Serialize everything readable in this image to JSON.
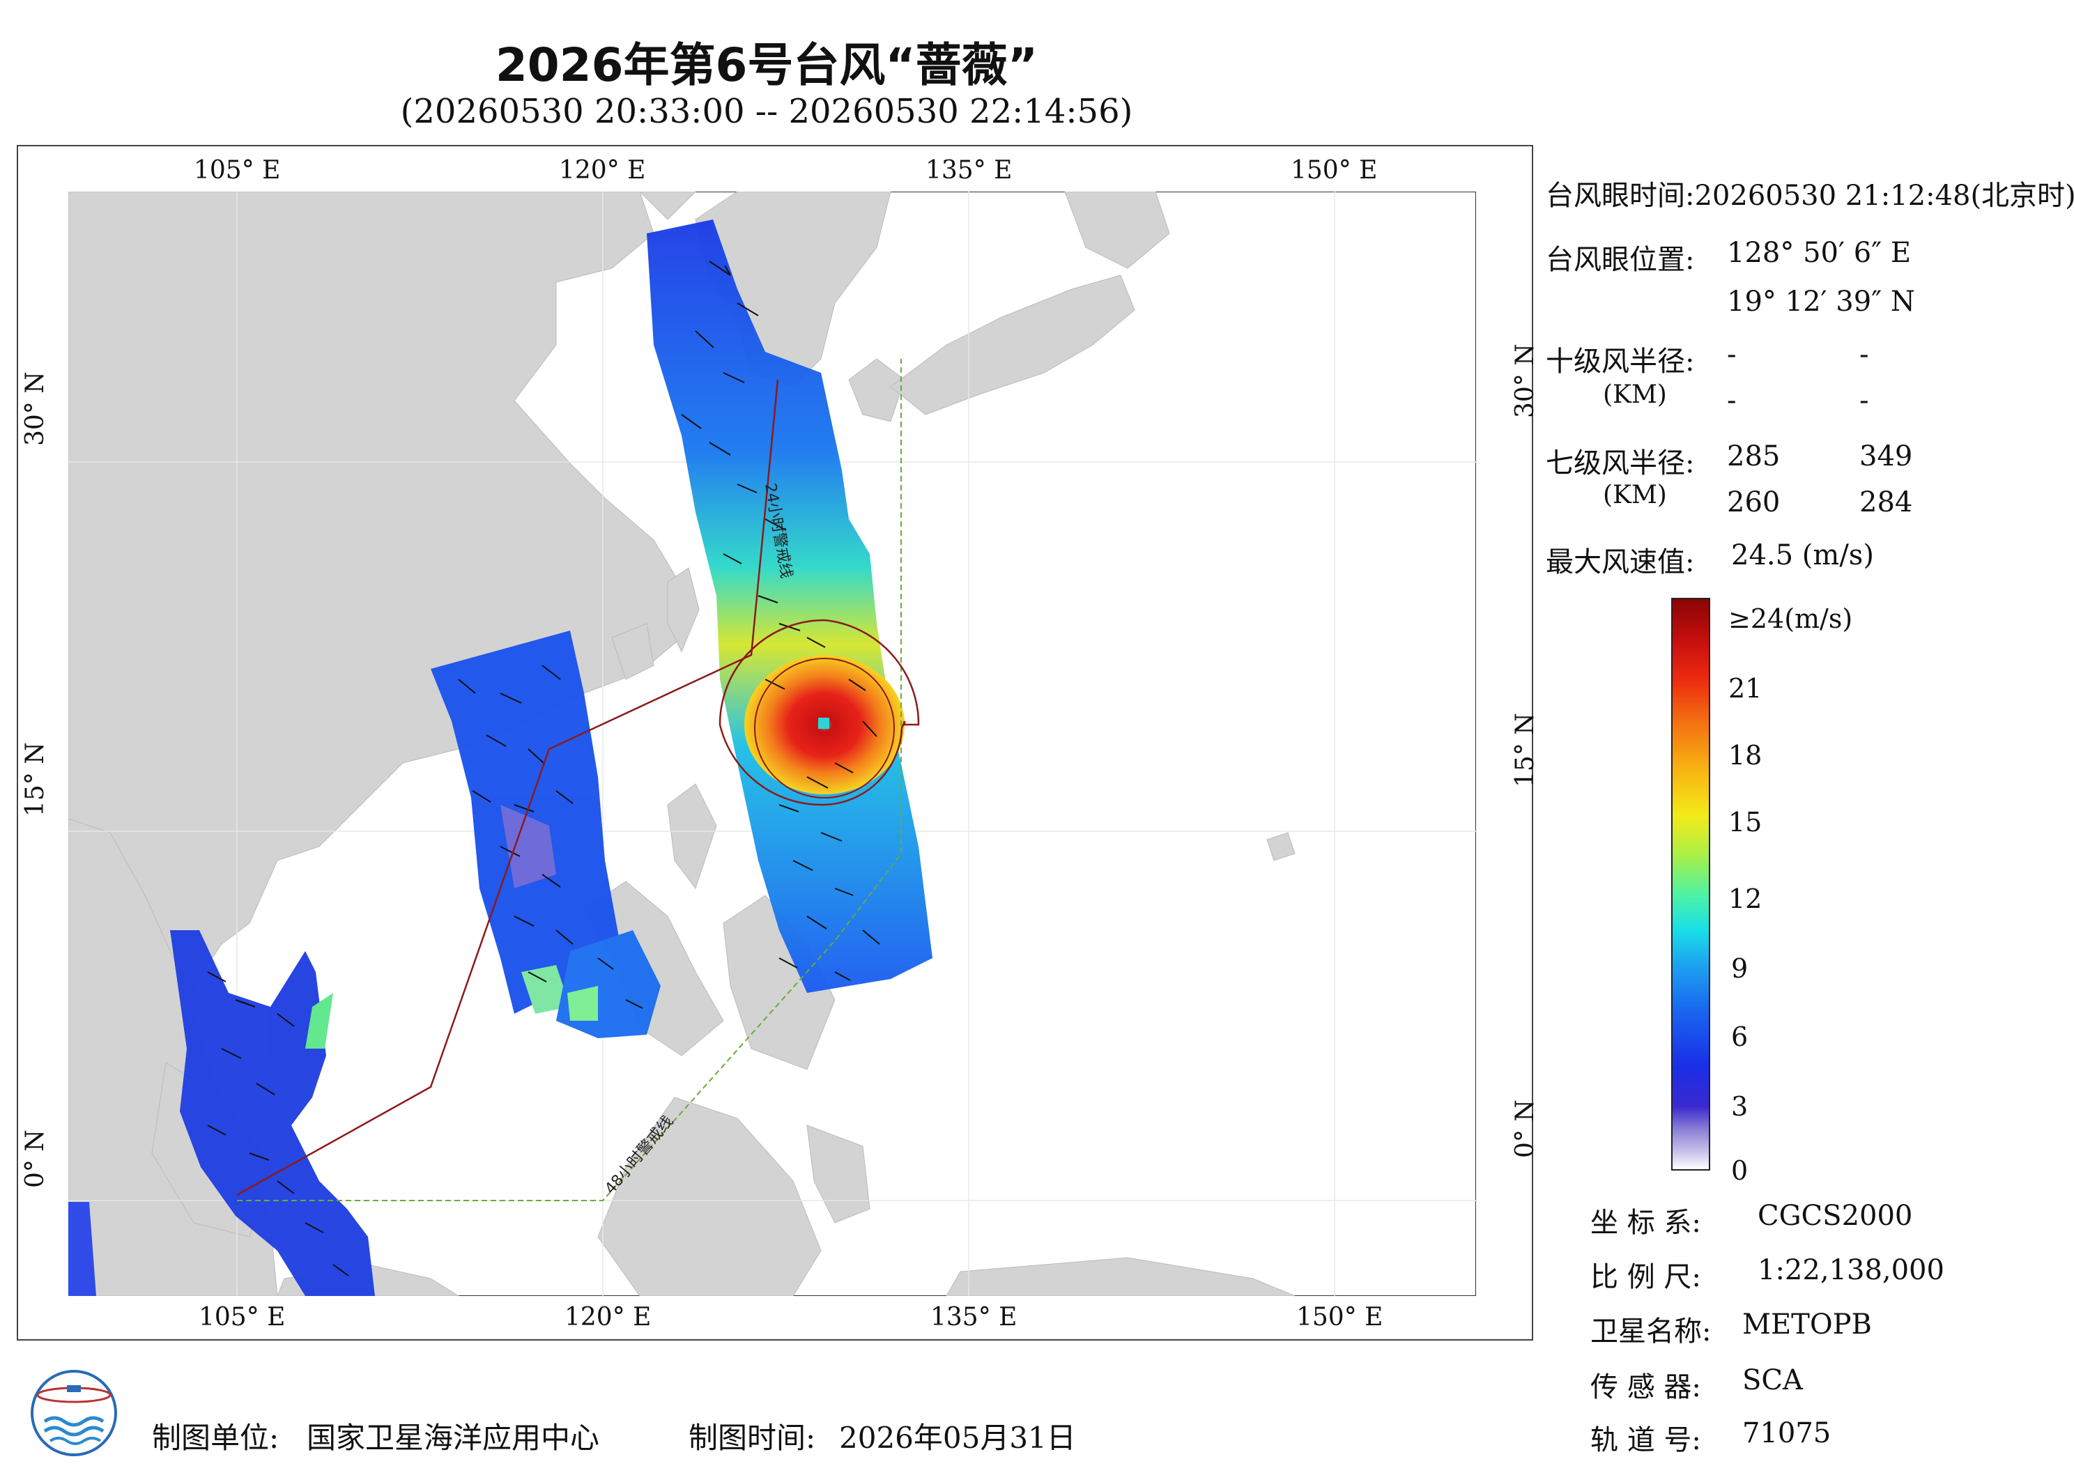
{
  "header": {
    "title": "2026年第6号台风“蔷薇”",
    "subtitle": "(20260530 20:33:00 -- 20260530 22:14:56)"
  },
  "map": {
    "lon_labels": [
      "105° E",
      "120° E",
      "135° E",
      "150° E"
    ],
    "lat_labels": [
      "30° N",
      "15° N",
      "0° N"
    ],
    "warning_24h_label": "24小时警戒线",
    "warning_48h_label": "48小时警戒线",
    "colors": {
      "land": "#d3d3d3",
      "warning_24h": "#8b1a1a",
      "warning_48h": "#6aaa3a"
    }
  },
  "info": {
    "eye_time_label": "台风眼时间:",
    "eye_time_value": "20260530 21:12:48(北京时)",
    "eye_pos_label": "台风眼位置:",
    "eye_lon": "128° 50′ 6″ E",
    "eye_lat": "19° 12′ 39″ N",
    "r10_label": "十级风半径:",
    "r10_unit": "(KM)",
    "r10_values": [
      "-",
      "-",
      "-",
      "-"
    ],
    "r7_label": "七级风半径:",
    "r7_unit": "(KM)",
    "r7_values": [
      "285",
      "349",
      "260",
      "284"
    ],
    "max_wind_label": "最大风速值:",
    "max_wind_value": "24.5 (m/s)"
  },
  "colorbar": {
    "labels": [
      "≥24(m/s)",
      "21",
      "18",
      "15",
      "12",
      "9",
      "6",
      "3",
      "0"
    ]
  },
  "meta": {
    "coord_label": "坐 标 系:",
    "coord_value": "CGCS2000",
    "scale_label": "比 例 尺:",
    "scale_value": "1:22,138,000",
    "sat_label": "卫星名称:",
    "sat_value": "METOPB",
    "sensor_label": "传 感 器:",
    "sensor_value": "SCA",
    "orbit_label": "轨 道 号:",
    "orbit_value": "71075"
  },
  "footer": {
    "unit_label": "制图单位:",
    "unit_value": "国家卫星海洋应用中心",
    "time_label": "制图时间:",
    "time_value": "2026年05月31日"
  }
}
